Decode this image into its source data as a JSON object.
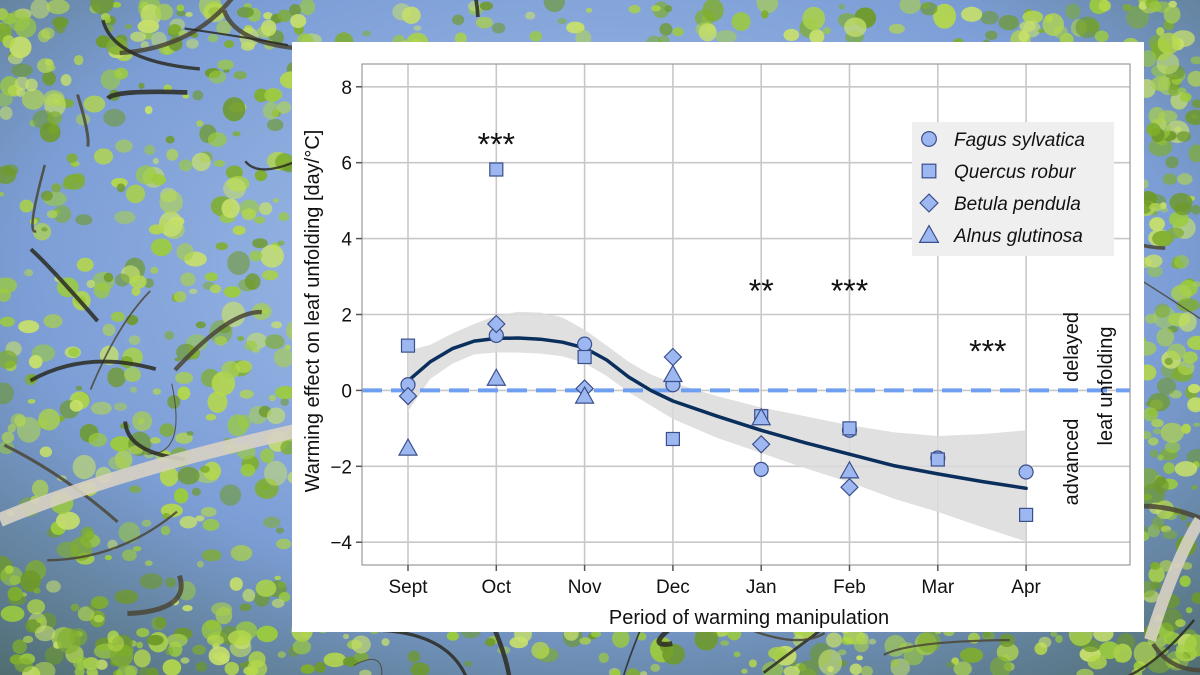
{
  "colors": {
    "marker_fill": "#9db8f0",
    "marker_stroke": "#3a4f8c",
    "smooth_line": "#0a2f5c",
    "ribbon": "#dadada",
    "zero_line": "#6f9ff0",
    "grid": "#c8c8c8",
    "sky": "#7fa4dc",
    "foliage": "#8cc43c"
  },
  "chart_data": {
    "type": "scatter",
    "xlabel": "Period of warming manipulation",
    "ylabel": "Warming effect on leaf unfolding [day/°C]",
    "categories": [
      "Sept",
      "Oct",
      "Nov",
      "Dec",
      "Jan",
      "Feb",
      "Mar",
      "Apr"
    ],
    "ylim": [
      -4.6,
      8.6
    ],
    "yticks": [
      -4,
      -2,
      0,
      2,
      4,
      6,
      8
    ],
    "grid": true,
    "legend_position": "top-right",
    "series": [
      {
        "name": "Fagus sylvatica",
        "marker": "circle",
        "values": [
          0.15,
          1.45,
          1.22,
          0.15,
          -2.08,
          -1.05,
          -1.78,
          -2.15
        ]
      },
      {
        "name": "Quercus robur",
        "marker": "square",
        "values": [
          1.18,
          5.82,
          0.88,
          -1.28,
          -0.68,
          -1.0,
          -1.82,
          -3.28
        ]
      },
      {
        "name": "Betula pendula",
        "marker": "diamond",
        "values": [
          -0.15,
          1.75,
          0.05,
          0.88,
          -1.42,
          -2.55,
          null,
          null
        ]
      },
      {
        "name": "Alnus glutinosa",
        "marker": "triangle",
        "values": [
          -1.52,
          0.32,
          -0.15,
          0.42,
          -0.72,
          -2.12,
          null,
          null
        ]
      }
    ],
    "smooth": {
      "x": [
        0,
        0.25,
        0.5,
        0.75,
        1.0,
        1.25,
        1.5,
        1.75,
        2.0,
        2.25,
        2.5,
        2.75,
        3.0,
        3.5,
        4.0,
        4.5,
        5.0,
        5.5,
        6.0,
        6.5,
        7.0
      ],
      "y": [
        0.25,
        0.75,
        1.1,
        1.3,
        1.37,
        1.38,
        1.35,
        1.27,
        1.12,
        0.8,
        0.35,
        0.0,
        -0.28,
        -0.68,
        -1.05,
        -1.38,
        -1.68,
        -1.98,
        -2.2,
        -2.4,
        -2.58
      ],
      "lower": [
        -0.55,
        0.3,
        0.7,
        0.95,
        1.0,
        1.0,
        0.97,
        0.9,
        0.72,
        0.38,
        -0.05,
        -0.4,
        -0.75,
        -1.25,
        -1.65,
        -2.05,
        -2.42,
        -2.85,
        -3.2,
        -3.6,
        -3.98
      ],
      "upper": [
        1.05,
        1.2,
        1.5,
        1.75,
        1.97,
        2.07,
        2.05,
        1.92,
        1.6,
        1.18,
        0.75,
        0.42,
        0.2,
        -0.15,
        -0.45,
        -0.68,
        -0.92,
        -1.1,
        -1.2,
        -1.15,
        -1.05
      ]
    },
    "significance": [
      {
        "category": "Oct",
        "label": "***",
        "y": 6.5
      },
      {
        "category": "Jan",
        "label": "**",
        "y": 2.65
      },
      {
        "category": "Feb",
        "label": "***",
        "y": 2.65
      },
      {
        "category": "Apr",
        "label": "***",
        "y": 1.05
      }
    ],
    "side_labels": {
      "delayed": "delayed",
      "advanced": "advanced",
      "leaf_unfolding": "leaf unfolding"
    },
    "zero_line": 0
  }
}
